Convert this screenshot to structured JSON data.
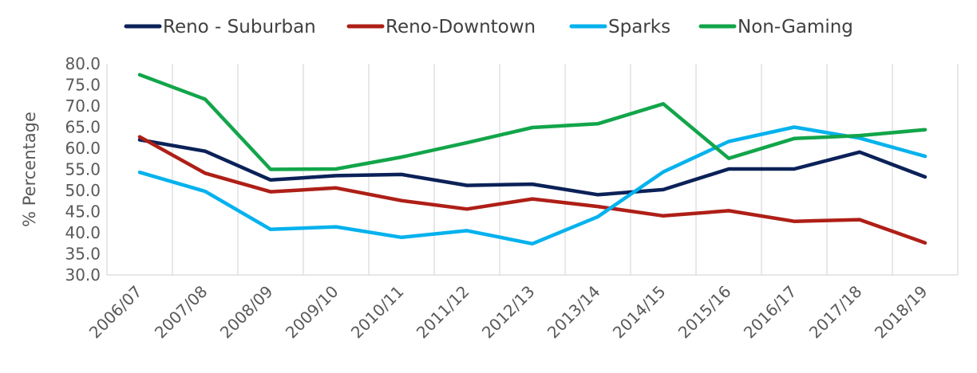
{
  "chart_data": {
    "type": "line",
    "ylabel": "% Percentage",
    "xlabel": "",
    "ylim": [
      30,
      80
    ],
    "yticks": [
      "30.0",
      "35.0",
      "40.0",
      "45.0",
      "50.0",
      "55.0",
      "60.0",
      "65.0",
      "70.0",
      "75.0",
      "80.0"
    ],
    "grid": "vertical",
    "legend": "top",
    "categories": [
      "2006/07",
      "2007/08",
      "2008/09",
      "2009/10",
      "2010/11",
      "2011/12",
      "2012/13",
      "2013/14",
      "2014/15",
      "2015/16",
      "2016/17",
      "2017/18",
      "2018/19"
    ],
    "series": [
      {
        "name": "Reno - Suburban",
        "color": "#0b2158",
        "values": [
          62.0,
          59.3,
          52.5,
          53.5,
          53.8,
          51.2,
          51.5,
          49.0,
          50.2,
          55.1,
          55.1,
          59.1,
          53.2
        ]
      },
      {
        "name": "Reno-Downtown",
        "color": "#ae1f17",
        "values": [
          62.7,
          54.1,
          49.7,
          50.6,
          47.6,
          45.6,
          48.0,
          46.2,
          44.0,
          45.2,
          42.7,
          43.1,
          37.6
        ]
      },
      {
        "name": "Sparks",
        "color": "#05b2ed",
        "values": [
          54.3,
          49.8,
          40.8,
          41.4,
          38.9,
          40.5,
          37.4,
          43.8,
          54.4,
          61.6,
          65.0,
          62.4,
          58.1
        ]
      },
      {
        "name": "Non-Gaming",
        "color": "#12a54a",
        "values": [
          77.4,
          71.6,
          55.0,
          55.1,
          57.9,
          61.3,
          64.9,
          65.8,
          70.5,
          57.6,
          62.3,
          63.0,
          64.4
        ]
      }
    ]
  }
}
